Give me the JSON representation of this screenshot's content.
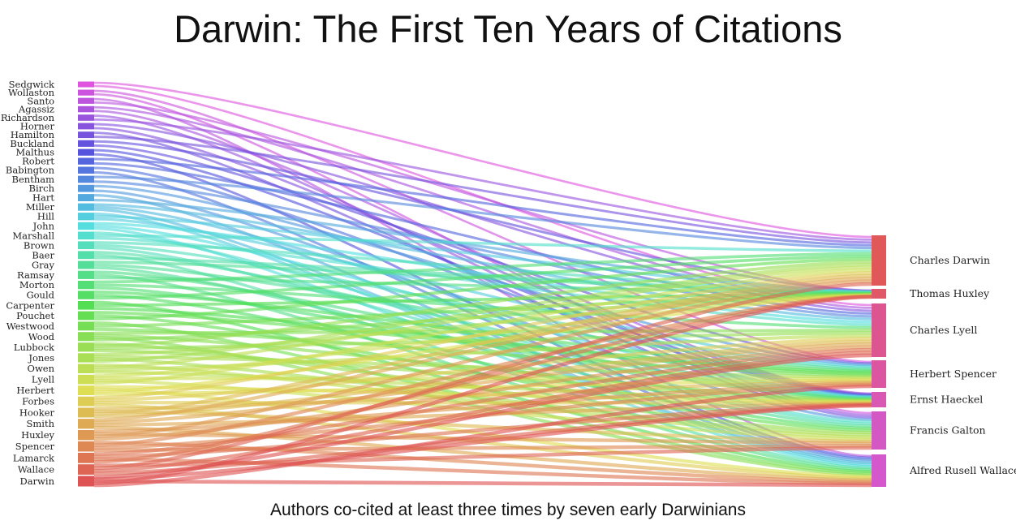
{
  "title": "Darwin: The First Ten Years of Citations",
  "caption": "Authors co-cited at least three times by seven early Darwinians",
  "sources": [
    "Sedgwick",
    "Wollaston",
    "Santo",
    "Agassiz",
    "Richardson",
    "Horner",
    "Hamilton",
    "Buckland",
    "Malthus",
    "Robert",
    "Babington",
    "Bentham",
    "Birch",
    "Hart",
    "Miller",
    "Hill",
    "John",
    "Marshall",
    "Brown",
    "Baer",
    "Gray",
    "Ramsay",
    "Morton",
    "Gould",
    "Carpenter",
    "Pouchet",
    "Westwood",
    "Wood",
    "Lubbock",
    "Jones",
    "Owen",
    "Lyell",
    "Herbert",
    "Forbes",
    "Hooker",
    "Smith",
    "Huxley",
    "Spencer",
    "Lamarck",
    "Wallace",
    "Darwin"
  ],
  "targets": [
    {
      "name": "Charles Darwin",
      "color": "#e05858"
    },
    {
      "name": "Thomas Huxley",
      "color": "#e05868"
    },
    {
      "name": "Charles Lyell",
      "color": "#dc5590"
    },
    {
      "name": "Herbert Spencer",
      "color": "#dc55a0"
    },
    {
      "name": "Ernst Haeckel",
      "color": "#d858b4"
    },
    {
      "name": "Francis Galton",
      "color": "#d458c4"
    },
    {
      "name": "Alfred Rusell Wallace",
      "color": "#d458cc"
    }
  ]
}
